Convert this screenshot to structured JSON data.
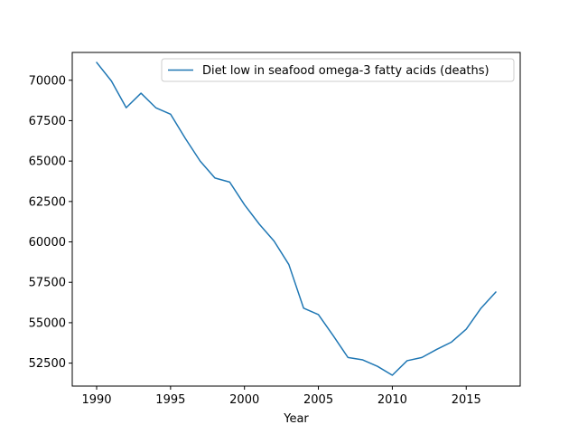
{
  "chart_data": {
    "type": "line",
    "title": "",
    "xlabel": "Year",
    "ylabel": "",
    "xlim": [
      1988.35,
      2018.65
    ],
    "ylim": [
      51080,
      71720
    ],
    "xticks": [
      1990,
      1995,
      2000,
      2005,
      2010,
      2015
    ],
    "yticks": [
      52500,
      55000,
      57500,
      60000,
      62500,
      65000,
      67500,
      70000
    ],
    "grid": false,
    "legend_position": "top-right",
    "series": [
      {
        "name": "Diet low in seafood omega-3 fatty acids (deaths)",
        "color": "#1f77b4",
        "x": [
          1990,
          1991,
          1992,
          1993,
          1994,
          1995,
          1996,
          1997,
          1998,
          1999,
          2000,
          2001,
          2002,
          2003,
          2004,
          2005,
          2006,
          2007,
          2008,
          2009,
          2010,
          2011,
          2012,
          2013,
          2014,
          2015,
          2016,
          2017
        ],
        "y": [
          71100,
          69950,
          68300,
          69200,
          68300,
          67900,
          66400,
          65000,
          63950,
          63700,
          62300,
          61100,
          60050,
          58600,
          55900,
          55500,
          54200,
          52850,
          52700,
          52300,
          51750,
          52650,
          52850,
          53350,
          53800,
          54600,
          55900,
          56900
        ]
      }
    ]
  }
}
